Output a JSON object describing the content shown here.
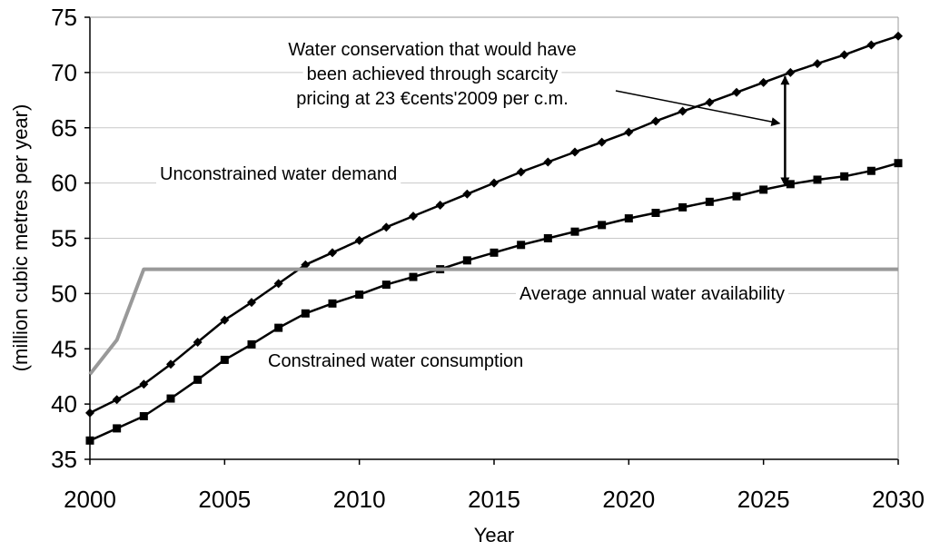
{
  "chart_data": {
    "type": "line",
    "title": "",
    "xlabel": "Year",
    "ylabel": "(million cubic metres per year)",
    "xlim": [
      2000,
      2030
    ],
    "ylim": [
      35,
      75
    ],
    "xticks": [
      2000,
      2005,
      2010,
      2015,
      2020,
      2025,
      2030
    ],
    "yticks": [
      35,
      40,
      45,
      50,
      55,
      60,
      65,
      70,
      75
    ],
    "grid": "horizontal",
    "series": [
      {
        "name": "Unconstrained water demand",
        "color": "#000000",
        "marker": "diamond",
        "x": [
          2000,
          2001,
          2002,
          2003,
          2004,
          2005,
          2006,
          2007,
          2008,
          2009,
          2010,
          2011,
          2012,
          2013,
          2014,
          2015,
          2016,
          2017,
          2018,
          2019,
          2020,
          2021,
          2022,
          2023,
          2024,
          2025,
          2026,
          2027,
          2028,
          2029,
          2030
        ],
        "values": [
          39.2,
          40.4,
          41.8,
          43.6,
          45.6,
          47.6,
          49.2,
          50.9,
          52.6,
          53.7,
          54.8,
          56.0,
          57.0,
          58.0,
          59.0,
          60.0,
          61.0,
          61.9,
          62.8,
          63.7,
          64.6,
          65.6,
          66.5,
          67.3,
          68.2,
          69.1,
          70.0,
          70.8,
          71.6,
          72.5,
          73.3
        ]
      },
      {
        "name": "Constrained water consumption",
        "color": "#000000",
        "marker": "square",
        "x": [
          2000,
          2001,
          2002,
          2003,
          2004,
          2005,
          2006,
          2007,
          2008,
          2009,
          2010,
          2011,
          2012,
          2013,
          2014,
          2015,
          2016,
          2017,
          2018,
          2019,
          2020,
          2021,
          2022,
          2023,
          2024,
          2025,
          2026,
          2027,
          2028,
          2029,
          2030
        ],
        "values": [
          36.7,
          37.8,
          38.9,
          40.5,
          42.2,
          44.0,
          45.4,
          46.9,
          48.2,
          49.1,
          49.9,
          50.8,
          51.5,
          52.2,
          53.0,
          53.7,
          54.4,
          55.0,
          55.6,
          56.2,
          56.8,
          57.3,
          57.8,
          58.3,
          58.8,
          59.4,
          59.9,
          60.3,
          60.6,
          61.1,
          61.8
        ]
      },
      {
        "name": "Average annual water availability",
        "color": "#999999",
        "marker": "none",
        "x": [
          2000,
          2001,
          2002,
          2030
        ],
        "values": [
          42.7,
          45.8,
          52.2,
          52.2
        ]
      }
    ],
    "annotations": {
      "demand_label": "Unconstrained water demand",
      "consumption_label": "Constrained water consumption",
      "availability_label": "Average annual water availability",
      "conservation_lines": [
        "Water conservation that would have",
        "been achieved through scarcity",
        "pricing at 23 €cents'2009 per c.m."
      ],
      "arrow_year": 2025.8,
      "arrow_top": 69.8,
      "arrow_bottom": 59.6
    }
  }
}
